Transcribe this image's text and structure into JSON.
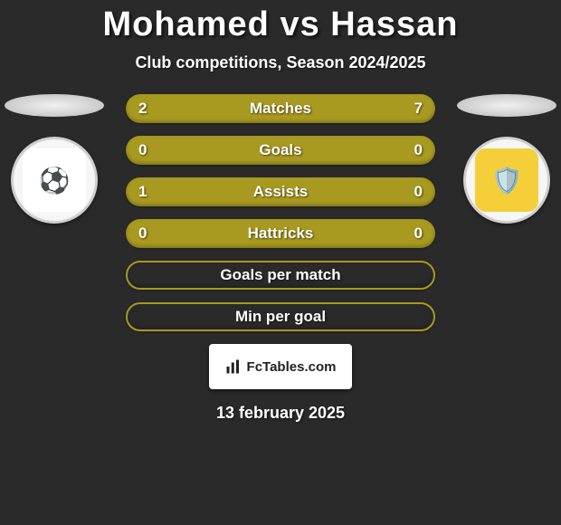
{
  "header": {
    "title_left": "Mohamed",
    "title_vs": "vs",
    "title_right": "Hassan",
    "subtitle": "Club competitions, Season 2024/2025"
  },
  "players": {
    "left_crest_bg": "#f6f6f6",
    "left_crest_inner_bg": "#ffffff",
    "left_crest_emoji": "⚽",
    "right_crest_bg": "#f6f6f6",
    "right_crest_inner_bg": "#f4cf3a",
    "right_crest_emoji": "🛡️"
  },
  "stats": {
    "rows": [
      {
        "label": "Matches",
        "left": "2",
        "right": "7",
        "type": "filled",
        "color": "#a89a20"
      },
      {
        "label": "Goals",
        "left": "0",
        "right": "0",
        "type": "filled",
        "color": "#a89a20"
      },
      {
        "label": "Assists",
        "left": "1",
        "right": "0",
        "type": "filled",
        "color": "#a89a20"
      },
      {
        "label": "Hattricks",
        "left": "0",
        "right": "0",
        "type": "filled",
        "color": "#a89a20"
      },
      {
        "label": "Goals per match",
        "left": "",
        "right": "",
        "type": "outline",
        "color": "#a89a20"
      },
      {
        "label": "Min per goal",
        "left": "",
        "right": "",
        "type": "outline",
        "color": "#a89a20"
      }
    ]
  },
  "brand": {
    "text": "FcTables.com"
  },
  "footer": {
    "date": "13 february 2025"
  },
  "style": {
    "background": "#2a2a2a",
    "pill_height": 32,
    "pill_radius": 16,
    "title_fontsize": 38,
    "subtitle_fontsize": 18,
    "stat_fontsize": 17
  }
}
